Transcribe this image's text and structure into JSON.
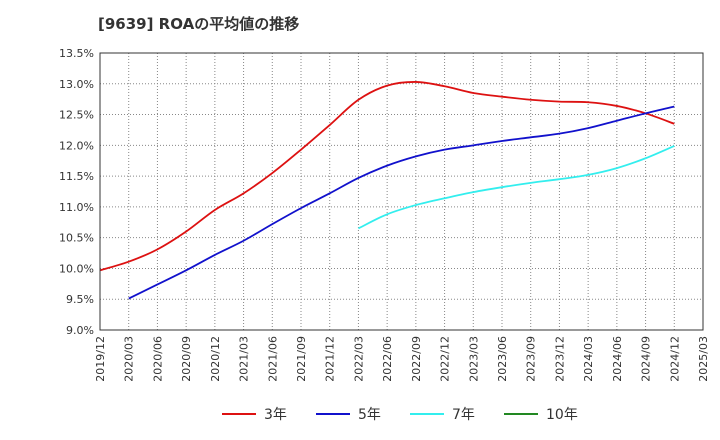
{
  "chart_data": {
    "type": "line",
    "title": "[9639]  ROAの平均値の推移",
    "xlabel": "",
    "ylabel": "",
    "x": [
      "2019/12",
      "2020/03",
      "2020/06",
      "2020/09",
      "2020/12",
      "2021/03",
      "2021/06",
      "2021/09",
      "2021/12",
      "2022/03",
      "2022/06",
      "2022/09",
      "2022/12",
      "2023/03",
      "2023/06",
      "2023/09",
      "2023/12",
      "2024/03",
      "2024/06",
      "2024/09",
      "2024/12",
      "2025/03"
    ],
    "ylim": [
      9.0,
      13.5
    ],
    "yticks": [
      "9.0%",
      "9.5%",
      "10.0%",
      "10.5%",
      "11.0%",
      "11.5%",
      "12.0%",
      "12.5%",
      "13.0%",
      "13.5%"
    ],
    "ytick_values": [
      9.0,
      9.5,
      10.0,
      10.5,
      11.0,
      11.5,
      12.0,
      12.5,
      13.0,
      13.5
    ],
    "grid": true,
    "legend_position": "bottom",
    "series": [
      {
        "name": "3年",
        "color": "#dd1111",
        "values": [
          9.97,
          10.11,
          10.31,
          10.6,
          10.95,
          11.22,
          11.55,
          11.93,
          12.33,
          12.74,
          12.97,
          13.03,
          12.96,
          12.85,
          12.79,
          12.74,
          12.71,
          12.7,
          12.64,
          12.52,
          12.35,
          null
        ]
      },
      {
        "name": "5年",
        "color": "#1111cc",
        "values": [
          null,
          9.51,
          9.74,
          9.97,
          10.22,
          10.45,
          10.72,
          10.98,
          11.22,
          11.47,
          11.67,
          11.82,
          11.93,
          12.0,
          12.07,
          12.13,
          12.19,
          12.28,
          12.4,
          12.52,
          12.63,
          null
        ]
      },
      {
        "name": "7年",
        "color": "#33eeee",
        "values": [
          null,
          null,
          null,
          null,
          null,
          null,
          null,
          null,
          null,
          10.65,
          10.88,
          11.03,
          11.14,
          11.24,
          11.32,
          11.39,
          11.45,
          11.52,
          11.63,
          11.79,
          11.99,
          null
        ]
      },
      {
        "name": "10年",
        "color": "#228822",
        "values": [
          null,
          null,
          null,
          null,
          null,
          null,
          null,
          null,
          null,
          null,
          null,
          null,
          null,
          null,
          null,
          null,
          null,
          null,
          null,
          null,
          null,
          null
        ]
      }
    ]
  }
}
